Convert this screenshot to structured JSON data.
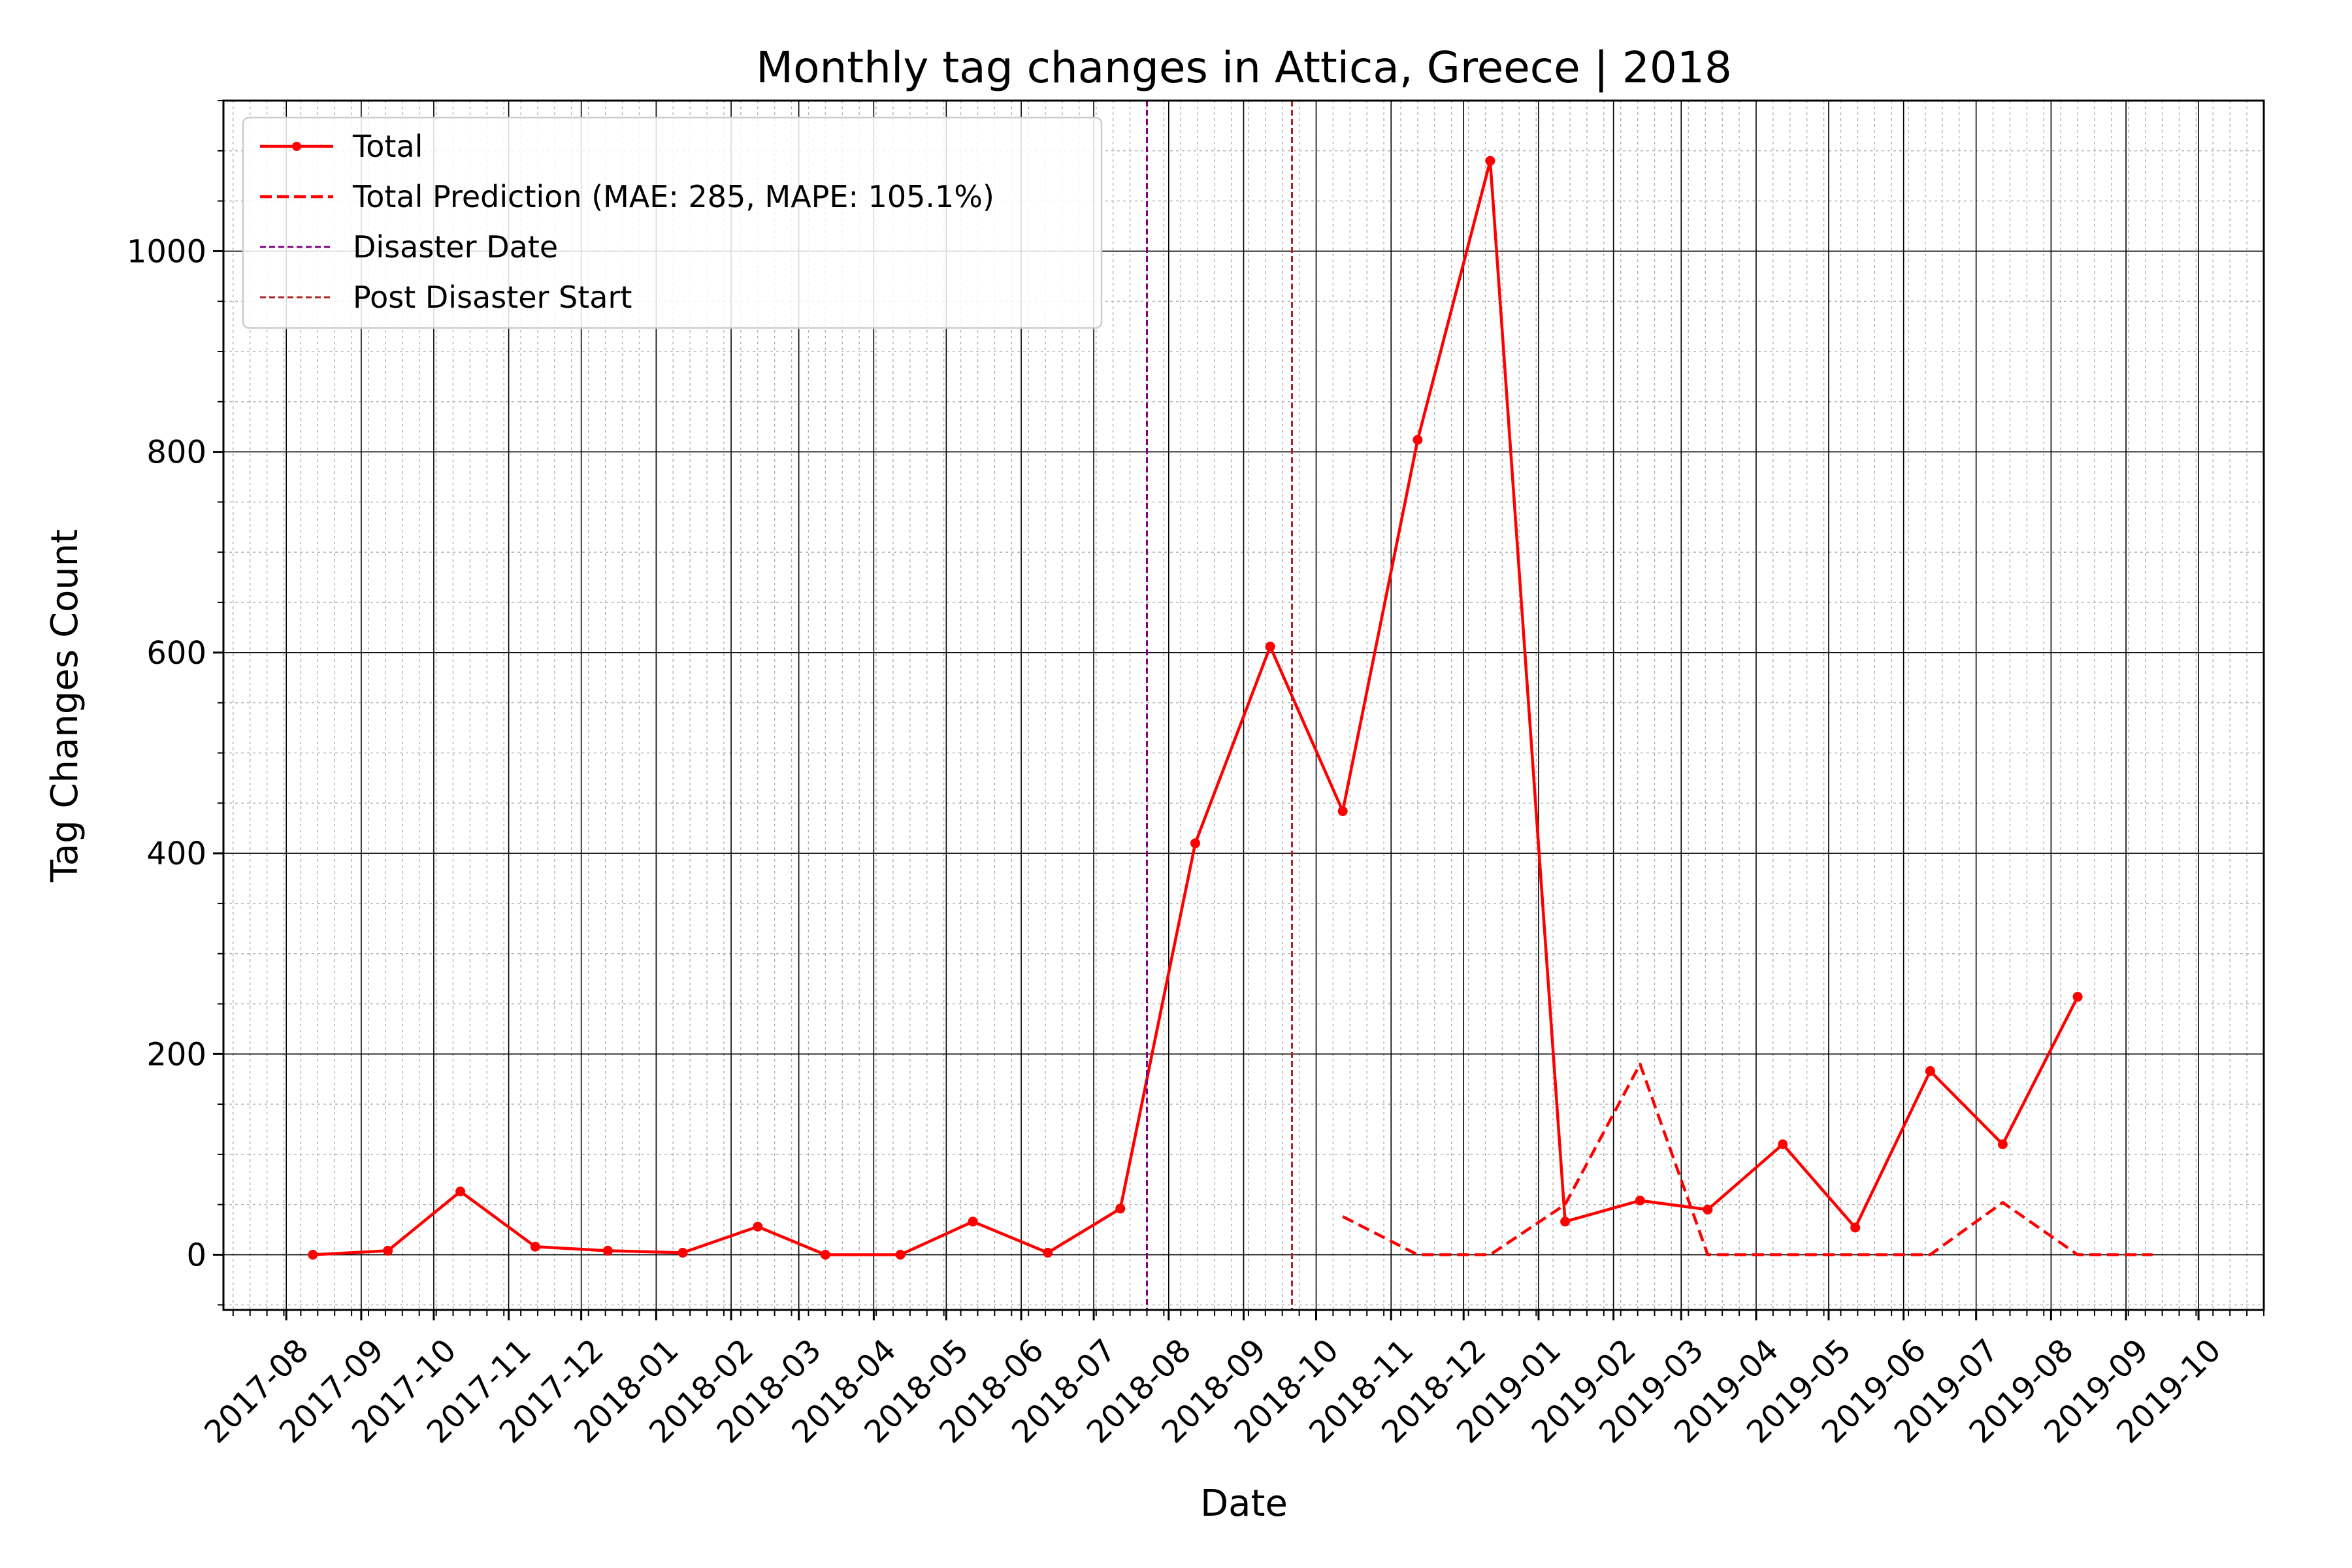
{
  "chart_data": {
    "type": "line",
    "title": "Monthly tag changes in Attica, Greece | 2018",
    "xlabel": "Date",
    "ylabel": "Tag Changes Count",
    "x_ticks": [
      "2017-08",
      "2017-09",
      "2017-10",
      "2017-11",
      "2017-12",
      "2018-01",
      "2018-02",
      "2018-03",
      "2018-04",
      "2018-05",
      "2018-06",
      "2018-07",
      "2018-08",
      "2018-09",
      "2018-10",
      "2018-11",
      "2018-12",
      "2019-01",
      "2019-02",
      "2019-03",
      "2019-04",
      "2019-05",
      "2019-06",
      "2019-07",
      "2019-08",
      "2019-09",
      "2019-10"
    ],
    "xlim": [
      "2017-07-06",
      "2019-10-28"
    ],
    "y_ticks": [
      0,
      200,
      400,
      600,
      800,
      1000
    ],
    "ylim": [
      -55,
      1150
    ],
    "grid": true,
    "legend_position": "top-left",
    "series": [
      {
        "name": "Total",
        "style": "solid-markers",
        "color": "#ff0000",
        "x": [
          "2017-08-12",
          "2017-09-12",
          "2017-10-12",
          "2017-11-12",
          "2017-12-12",
          "2018-01-12",
          "2018-02-12",
          "2018-03-12",
          "2018-04-12",
          "2018-05-12",
          "2018-06-12",
          "2018-07-12",
          "2018-08-12",
          "2018-09-12",
          "2018-10-12",
          "2018-11-12",
          "2018-12-12",
          "2019-01-12",
          "2019-02-12",
          "2019-03-12",
          "2019-04-12",
          "2019-05-12",
          "2019-06-12",
          "2019-07-12",
          "2019-08-12"
        ],
        "values": [
          0,
          4,
          63,
          8,
          4,
          2,
          28,
          0,
          0,
          33,
          2,
          46,
          410,
          606,
          442,
          812,
          1090,
          33,
          54,
          45,
          110,
          27,
          183,
          110,
          257
        ]
      },
      {
        "name": "Total Prediction (MAE: 285, MAPE: 105.1%)",
        "style": "dashed",
        "color": "#ff0000",
        "x": [
          "2018-10-12",
          "2018-11-12",
          "2018-12-12",
          "2019-01-12",
          "2019-02-12",
          "2019-03-12",
          "2019-04-12",
          "2019-05-12",
          "2019-06-12",
          "2019-07-12",
          "2019-08-12",
          "2019-09-12"
        ],
        "values": [
          38,
          0,
          0,
          50,
          190,
          0,
          0,
          0,
          0,
          52,
          0,
          0
        ]
      }
    ],
    "vlines": [
      {
        "name": "Disaster Date",
        "date": "2018-07-23",
        "color": "#800080"
      },
      {
        "name": "Post Disaster Start",
        "date": "2018-09-21",
        "color": "#b22222"
      }
    ]
  }
}
